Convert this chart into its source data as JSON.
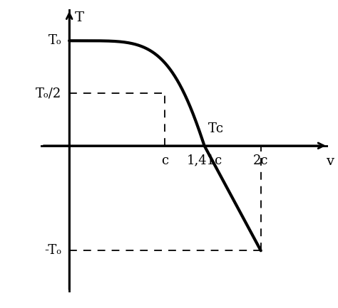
{
  "T0": 1.0,
  "x_c": 1.0,
  "x_141c": 1.41,
  "x_2c": 2.0,
  "xlim": [
    -0.3,
    2.7
  ],
  "ylim": [
    -1.4,
    1.3
  ],
  "bg_color": "#ffffff",
  "curve_color": "#000000",
  "dashed_color": "#000000",
  "axis_color": "#000000",
  "label_T0": "Tₒ",
  "label_T0half": "Tₒ/2",
  "label_negT0": "-Tₒ",
  "label_c": "c",
  "label_141c": "1,41c",
  "label_2c": "2c",
  "label_Tc": "Tᴄ",
  "label_v": "v",
  "label_T": "T",
  "curve_exponent": 2.5,
  "figsize": [
    4.74,
    4.33
  ],
  "dpi": 100
}
